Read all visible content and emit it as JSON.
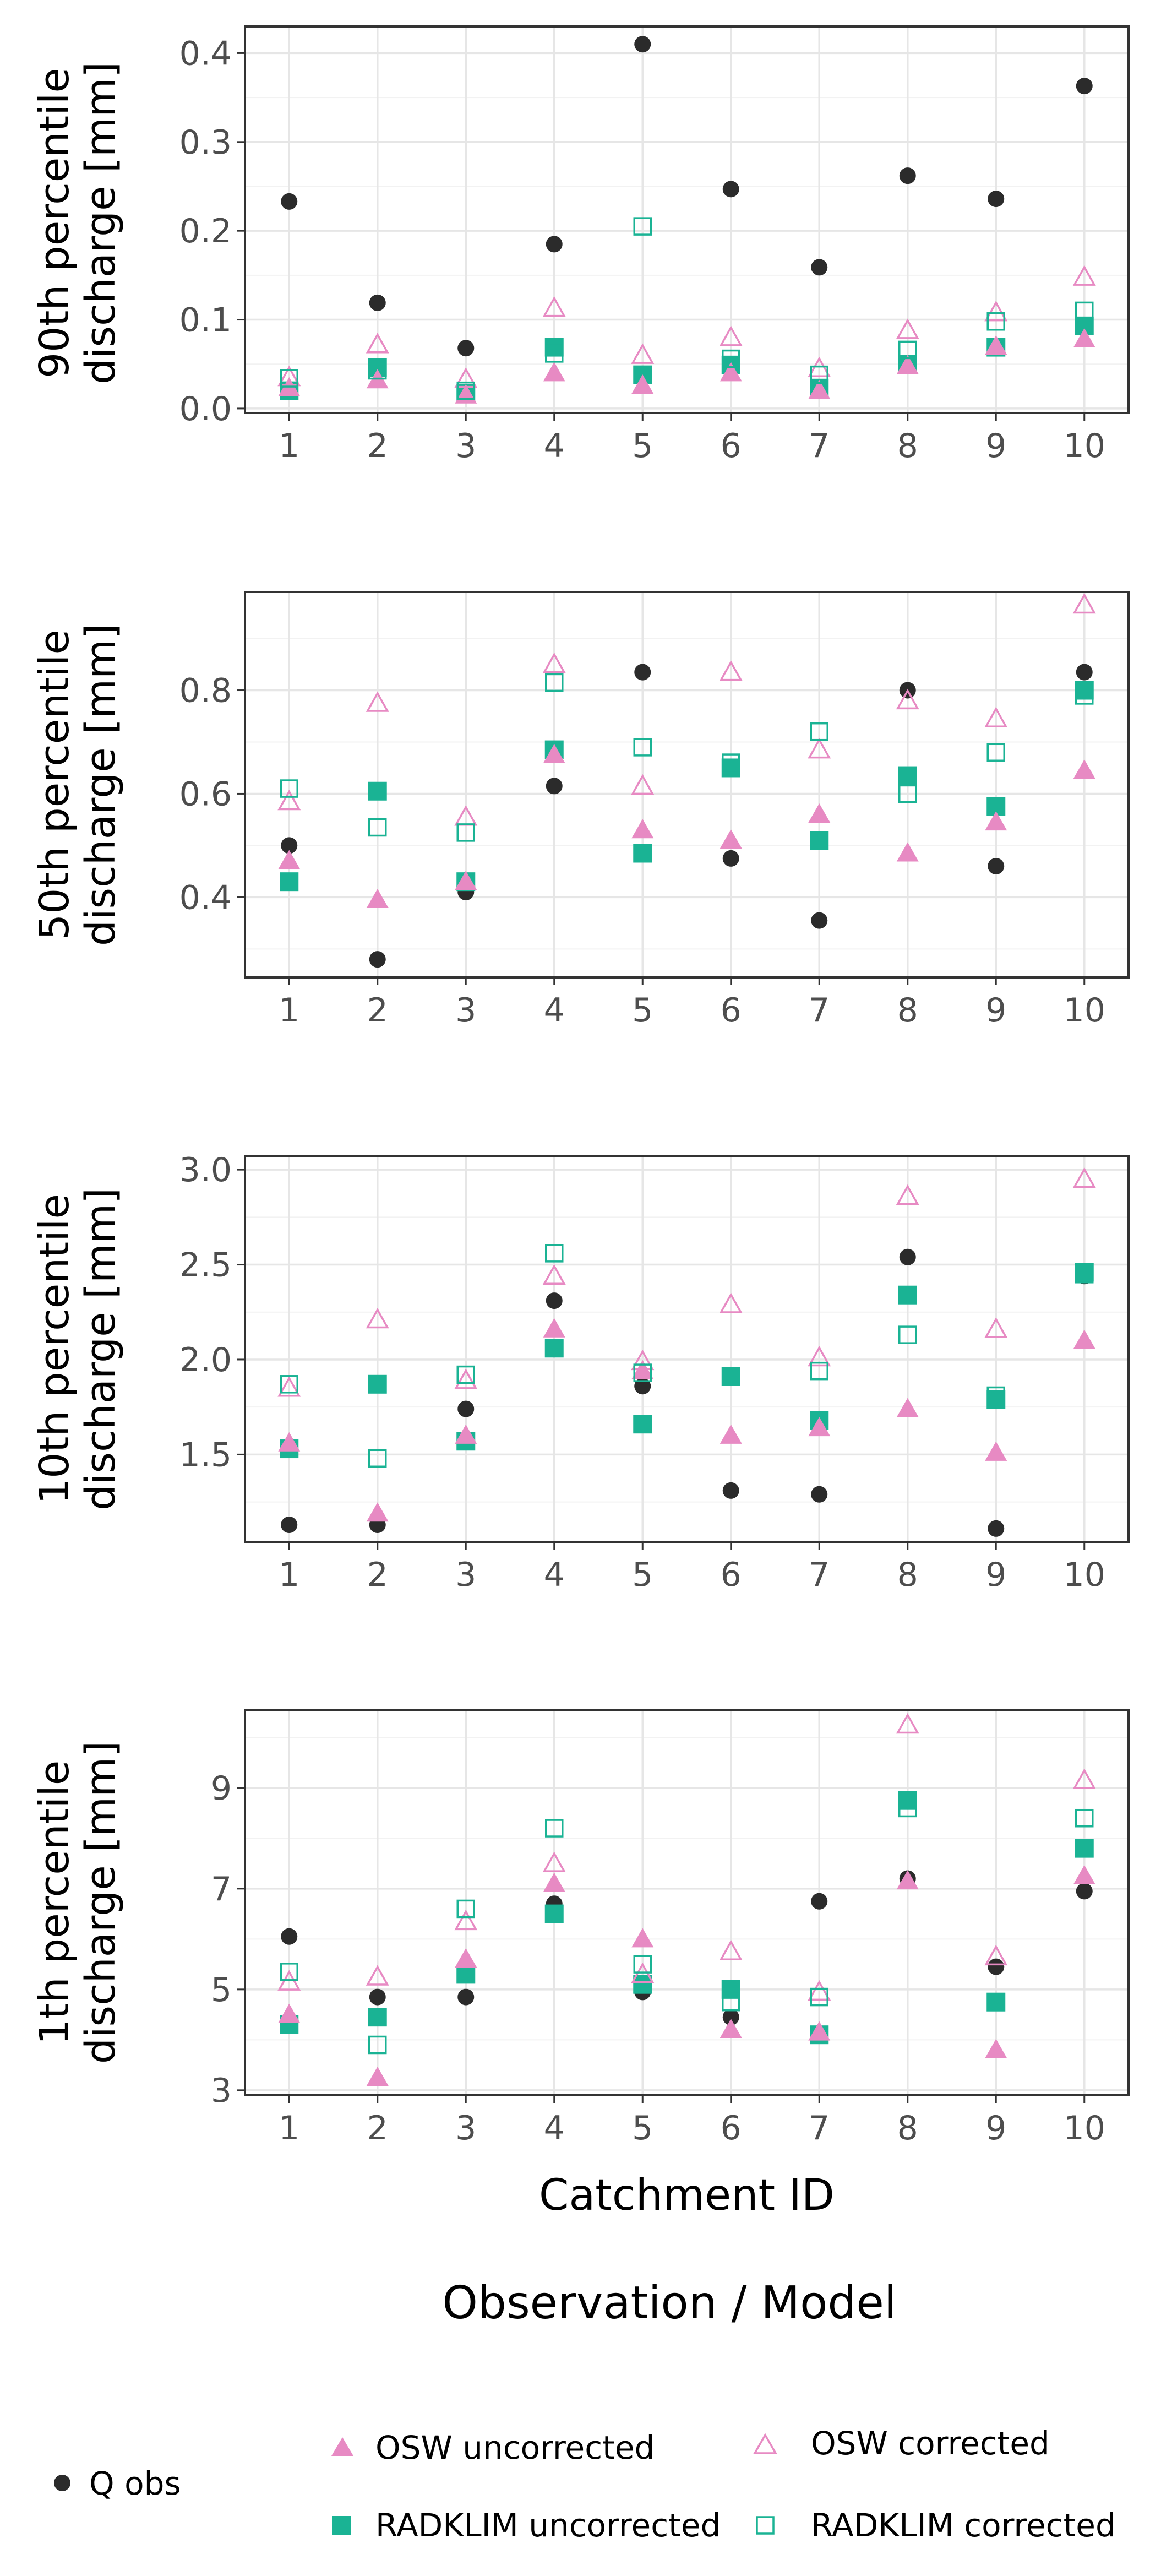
{
  "chart_data": [
    {
      "type": "scatter",
      "title": "",
      "ylabel_line1": "90th percentile",
      "ylabel_line2": "discharge [mm]",
      "ylim": [
        -0.005,
        0.43
      ],
      "yticks": [
        0.0,
        0.1,
        0.2,
        0.3,
        0.4
      ],
      "ytick_labels": [
        "0.0",
        "0.1",
        "0.2",
        "0.3",
        "0.4"
      ],
      "categories": [
        "1",
        "2",
        "3",
        "4",
        "5",
        "6",
        "7",
        "8",
        "9",
        "10"
      ],
      "series": [
        {
          "name": "Q obs",
          "values": [
            0.233,
            0.119,
            0.068,
            0.185,
            0.41,
            0.247,
            0.159,
            0.262,
            0.236,
            0.363
          ]
        },
        {
          "name": "OSW uncorrected",
          "values": [
            0.023,
            0.032,
            0.015,
            0.04,
            0.026,
            0.04,
            0.02,
            0.048,
            0.07,
            0.078
          ]
        },
        {
          "name": "OSW corrected",
          "values": [
            0.035,
            0.072,
            0.033,
            0.113,
            0.06,
            0.08,
            0.045,
            0.088,
            0.108,
            0.148
          ]
        },
        {
          "name": "RADKLIM uncorrected",
          "values": [
            0.02,
            0.046,
            0.017,
            0.069,
            0.038,
            0.049,
            0.023,
            0.05,
            0.069,
            0.093
          ]
        },
        {
          "name": "RADKLIM corrected",
          "values": [
            0.034,
            0.043,
            0.02,
            0.062,
            0.205,
            0.056,
            0.038,
            0.066,
            0.098,
            0.11
          ]
        }
      ]
    },
    {
      "type": "scatter",
      "title": "",
      "ylabel_line1": "50th percentile",
      "ylabel_line2": "discharge [mm]",
      "ylim": [
        0.245,
        0.99
      ],
      "yticks": [
        0.4,
        0.6,
        0.8
      ],
      "ytick_labels": [
        "0.4",
        "0.6",
        "0.8"
      ],
      "categories": [
        "1",
        "2",
        "3",
        "4",
        "5",
        "6",
        "7",
        "8",
        "9",
        "10"
      ],
      "series": [
        {
          "name": "Q obs",
          "values": [
            0.5,
            0.28,
            0.41,
            0.615,
            0.835,
            0.475,
            0.355,
            0.8,
            0.46,
            0.835
          ]
        },
        {
          "name": "OSW uncorrected",
          "values": [
            0.47,
            0.395,
            0.43,
            0.675,
            0.53,
            0.51,
            0.56,
            0.485,
            0.545,
            0.645
          ]
        },
        {
          "name": "OSW corrected",
          "values": [
            0.585,
            0.775,
            0.555,
            0.85,
            0.615,
            0.835,
            0.685,
            0.78,
            0.745,
            0.965
          ]
        },
        {
          "name": "RADKLIM uncorrected",
          "values": [
            0.43,
            0.605,
            0.43,
            0.685,
            0.485,
            0.65,
            0.51,
            0.635,
            0.575,
            0.8
          ]
        },
        {
          "name": "RADKLIM corrected",
          "values": [
            0.61,
            0.535,
            0.525,
            0.815,
            0.69,
            0.66,
            0.72,
            0.6,
            0.68,
            0.79
          ]
        }
      ]
    },
    {
      "type": "scatter",
      "title": "",
      "ylabel_line1": "10th percentile",
      "ylabel_line2": "discharge [mm]",
      "ylim": [
        1.04,
        3.07
      ],
      "yticks": [
        1.5,
        2.0,
        2.5,
        3.0
      ],
      "ytick_labels": [
        "1.5",
        "2.0",
        "2.5",
        "3.0"
      ],
      "categories": [
        "1",
        "2",
        "3",
        "4",
        "5",
        "6",
        "7",
        "8",
        "9",
        "10"
      ],
      "series": [
        {
          "name": "Q obs",
          "values": [
            1.13,
            1.13,
            1.74,
            2.31,
            1.86,
            1.31,
            1.29,
            2.54,
            1.11,
            2.44
          ]
        },
        {
          "name": "OSW uncorrected",
          "values": [
            1.56,
            1.19,
            1.6,
            2.16,
            1.94,
            1.6,
            1.64,
            1.74,
            1.51,
            2.1
          ]
        },
        {
          "name": "OSW corrected",
          "values": [
            1.85,
            2.21,
            1.89,
            2.44,
            1.99,
            2.29,
            2.01,
            2.86,
            2.16,
            2.95
          ]
        },
        {
          "name": "RADKLIM uncorrected",
          "values": [
            1.53,
            1.87,
            1.57,
            2.06,
            1.66,
            1.91,
            1.68,
            2.34,
            1.79,
            2.46
          ]
        },
        {
          "name": "RADKLIM corrected",
          "values": [
            1.87,
            1.48,
            1.92,
            2.56,
            1.93,
            1.91,
            1.94,
            2.13,
            1.81,
            2.45
          ]
        }
      ]
    },
    {
      "type": "scatter",
      "title": "",
      "ylabel_line1": "1th percentile",
      "ylabel_line2": "discharge [mm]",
      "ylim": [
        2.9,
        10.55
      ],
      "yticks": [
        3,
        5,
        7,
        9
      ],
      "ytick_labels": [
        "3",
        "5",
        "7",
        "9"
      ],
      "xlabel": "Catchment ID",
      "categories": [
        "1",
        "2",
        "3",
        "4",
        "5",
        "6",
        "7",
        "8",
        "9",
        "10"
      ],
      "series": [
        {
          "name": "Q obs",
          "values": [
            6.05,
            4.85,
            4.85,
            6.7,
            4.95,
            4.45,
            6.75,
            7.2,
            5.45,
            6.95
          ]
        },
        {
          "name": "OSW uncorrected",
          "values": [
            4.5,
            3.25,
            5.6,
            7.1,
            6.0,
            4.2,
            4.15,
            7.15,
            3.8,
            7.25
          ]
        },
        {
          "name": "OSW corrected",
          "values": [
            5.15,
            5.25,
            6.35,
            7.5,
            5.3,
            5.75,
            4.95,
            10.25,
            5.65,
            9.15
          ]
        },
        {
          "name": "RADKLIM uncorrected",
          "values": [
            4.3,
            4.45,
            5.3,
            6.5,
            5.1,
            5.0,
            4.1,
            8.75,
            4.75,
            7.8
          ]
        },
        {
          "name": "RADKLIM corrected",
          "values": [
            5.35,
            3.9,
            6.6,
            8.2,
            5.5,
            4.75,
            4.85,
            8.6,
            4.75,
            8.4
          ]
        }
      ]
    }
  ],
  "legend": {
    "title": "Observation / Model",
    "items": [
      {
        "name": "Q obs",
        "label": "Q obs"
      },
      {
        "name": "OSW uncorrected",
        "label": "OSW uncorrected"
      },
      {
        "name": "OSW corrected",
        "label": "OSW corrected"
      },
      {
        "name": "RADKLIM uncorrected",
        "label": "RADKLIM uncorrected"
      },
      {
        "name": "RADKLIM corrected",
        "label": "RADKLIM corrected"
      }
    ]
  },
  "colors": {
    "q_obs": "#2b2b2b",
    "osw": "#e78ac3",
    "radklim": "#1ab394",
    "grid": "#e6e6e6",
    "axis": "#333333"
  }
}
